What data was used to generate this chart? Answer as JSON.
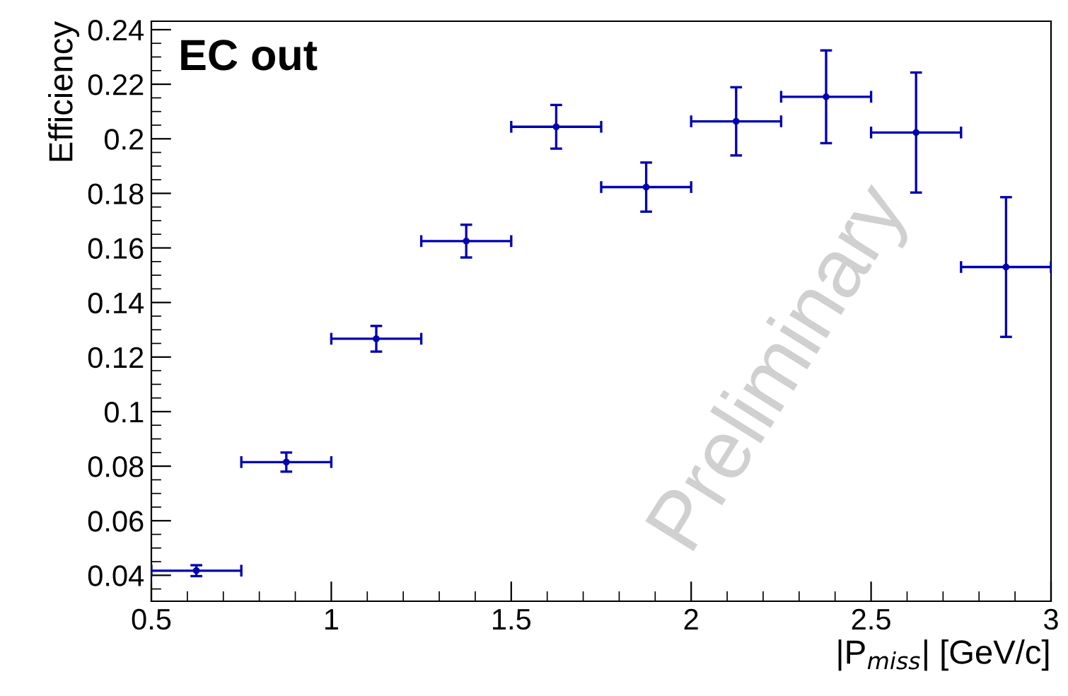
{
  "chart_data": {
    "type": "scatter",
    "title": "EC out",
    "xlabel": "|P$_{miss}$| [GeV/c]",
    "ylabel": "Efficiency",
    "x": [
      0.625,
      0.875,
      1.125,
      1.375,
      1.625,
      1.875,
      2.125,
      2.375,
      2.625,
      2.875
    ],
    "series": [
      {
        "color": "#0000b0",
        "values": [
          0.0417,
          0.0815,
          0.1267,
          0.1625,
          0.2044,
          0.1823,
          0.2064,
          0.2154,
          0.2023,
          0.153
        ],
        "errors": [
          0.002,
          0.0035,
          0.0047,
          0.006,
          0.008,
          0.009,
          0.0125,
          0.017,
          0.022,
          0.0256
        ],
        "xerrors": [
          0.125,
          0.125,
          0.125,
          0.125,
          0.125,
          0.125,
          0.125,
          0.125,
          0.125,
          0.125
        ]
      }
    ],
    "marker": "circle",
    "xlim": [
      0.5,
      3
    ],
    "xticks": [
      0.5,
      1,
      1.5,
      2,
      2.5,
      3
    ],
    "ylim": [
      0.0305,
      0.2431
    ],
    "yticks": [
      0.04,
      0.06,
      0.08,
      0.1,
      0.12,
      0.14,
      0.16,
      0.18,
      0.2,
      0.22,
      0.24
    ],
    "grid": false,
    "legend": false,
    "annotations": [
      "Preliminary"
    ]
  }
}
